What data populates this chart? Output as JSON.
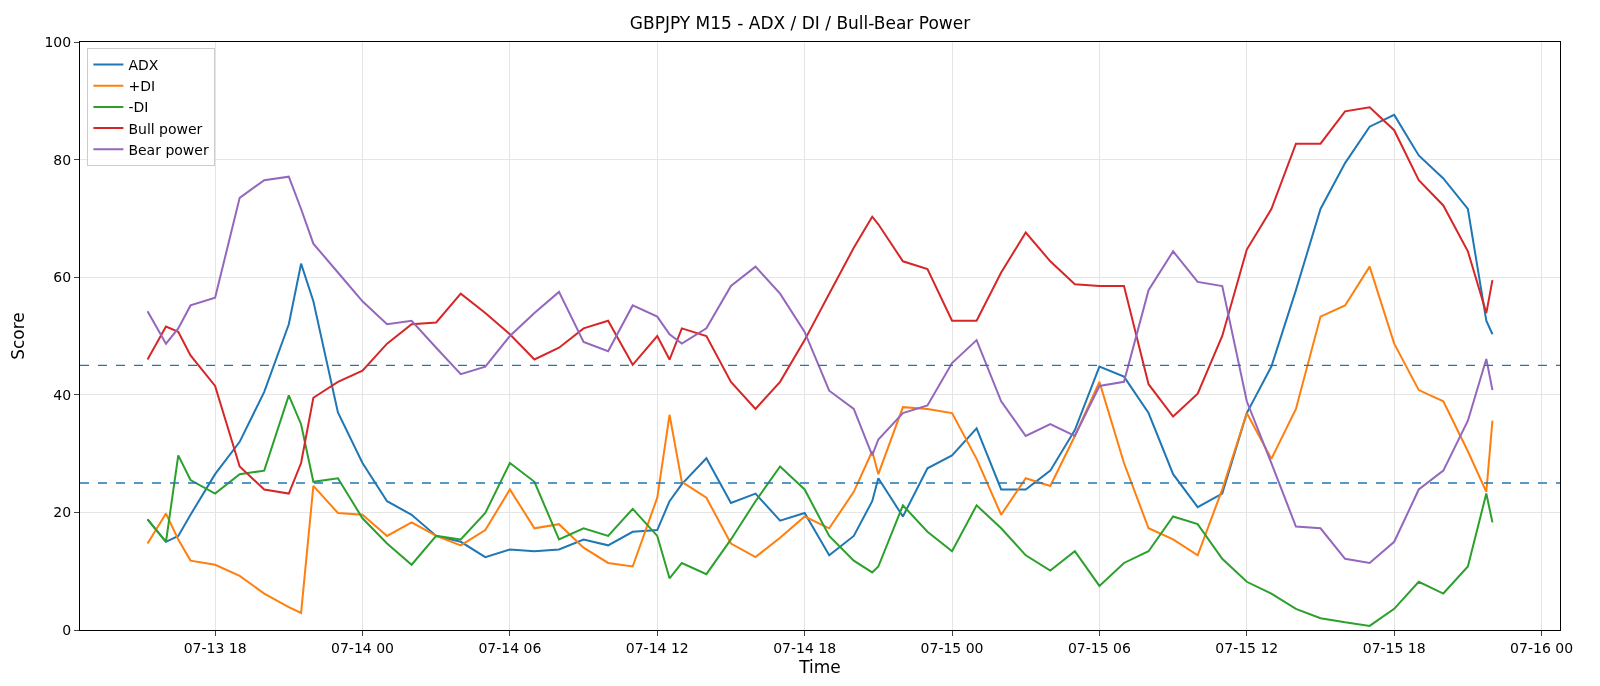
{
  "chart_data": {
    "type": "line",
    "title": "GBPJPY M15 - ADX / DI / Bull-Bear Power",
    "xlabel": "Time",
    "ylabel": "Score",
    "x": [
      "--07-13T15:15",
      "--07-13T16:00",
      "--07-13T16:30",
      "--07-13T17:00",
      "--07-13T18:00",
      "--07-13T19:00",
      "--07-13T20:00",
      "--07-13T21:00",
      "--07-13T21:30",
      "--07-13T22:00",
      "--07-13T23:00",
      "--07-14T00:00",
      "--07-14T01:00",
      "--07-14T02:00",
      "--07-14T03:00",
      "--07-14T04:00",
      "--07-14T05:00",
      "--07-14T06:00",
      "--07-14T07:00",
      "--07-14T08:00",
      "--07-14T09:00",
      "--07-14T10:00",
      "--07-14T11:00",
      "--07-14T12:00",
      "--07-14T12:30",
      "--07-14T13:00",
      "--07-14T14:00",
      "--07-14T15:00",
      "--07-14T16:00",
      "--07-14T17:00",
      "--07-14T18:00",
      "--07-14T19:00",
      "--07-14T20:00",
      "--07-14T20:45",
      "--07-14T21:00",
      "--07-14T22:00",
      "--07-14T23:00",
      "--07-15T00:00",
      "--07-15T01:00",
      "--07-15T02:00",
      "--07-15T03:00",
      "--07-15T04:00",
      "--07-15T05:00",
      "--07-15T06:00",
      "--07-15T07:00",
      "--07-15T08:00",
      "--07-15T09:00",
      "--07-15T10:00",
      "--07-15T11:00",
      "--07-15T12:00",
      "--07-15T13:00",
      "--07-15T14:00",
      "--07-15T15:00",
      "--07-15T16:00",
      "--07-15T17:00",
      "--07-15T18:00",
      "--07-15T19:00",
      "--07-15T20:00",
      "--07-15T21:00",
      "--07-15T21:45",
      "--07-15T22:00"
    ],
    "series": [
      {
        "name": "ADX",
        "color": "#1f77b4",
        "values": [
          18.8,
          15,
          16,
          19.6,
          26.5,
          32,
          40.5,
          52,
          62.3,
          55.9,
          37,
          28.4,
          21.9,
          19.6,
          16,
          15,
          12.4,
          13.7,
          13.4,
          13.7,
          15.4,
          14.4,
          16.7,
          17,
          21.9,
          24.8,
          29.2,
          21.6,
          23.2,
          18.6,
          19.9,
          12.7,
          16,
          21.9,
          25.8,
          19.3,
          27.5,
          29.7,
          34.3,
          23.9,
          23.9,
          27.1,
          34,
          44.8,
          43.1,
          36.9,
          26.5,
          20.9,
          23.2,
          36.9,
          44.8,
          57.8,
          71.6,
          79.4,
          85.6,
          87.6,
          80.7,
          76.8,
          71.6,
          52.6,
          50.3
        ]
      },
      {
        "name": "+DI",
        "color": "#ff7f0e",
        "values": [
          14.7,
          19.8,
          15.4,
          11.8,
          11.1,
          9.2,
          6.2,
          3.9,
          2.9,
          24.5,
          19.9,
          19.6,
          16,
          18.3,
          16,
          14.4,
          17,
          23.9,
          17.3,
          18,
          14,
          11.4,
          10.8,
          22.5,
          36.6,
          25.2,
          22.5,
          14.7,
          12.4,
          15.7,
          19.3,
          17.3,
          23.5,
          30.4,
          26.5,
          37.9,
          37.6,
          36.9,
          29.1,
          19.6,
          25.8,
          24.5,
          33,
          42.2,
          28.4,
          17.3,
          15.4,
          12.7,
          23.9,
          36.9,
          29.1,
          37.6,
          53.3,
          55.2,
          61.8,
          48.7,
          40.8,
          38.9,
          30.4,
          23.5,
          35.6
        ]
      },
      {
        "name": "-DI",
        "color": "#2ca02c",
        "values": [
          18.8,
          15,
          29.7,
          25.5,
          23.2,
          26.5,
          27.1,
          39.9,
          35,
          25.2,
          25.8,
          19,
          14.7,
          11.1,
          16,
          15.4,
          19.9,
          28.4,
          25.2,
          15.4,
          17.3,
          16,
          20.6,
          16,
          8.8,
          11.4,
          9.5,
          15.4,
          21.9,
          27.8,
          23.9,
          16,
          11.8,
          9.8,
          10.8,
          21.2,
          16.7,
          13.4,
          21.2,
          17.3,
          12.7,
          10.1,
          13.4,
          7.5,
          11.4,
          13.4,
          19.3,
          18,
          12.1,
          8.2,
          6.2,
          3.6,
          2,
          1.3,
          0.7,
          3.6,
          8.2,
          6.2,
          10.8,
          23.2,
          18.3
        ]
      },
      {
        "name": "Bull power",
        "color": "#d62728",
        "values": [
          46,
          51.6,
          50.7,
          46.7,
          41.5,
          27.8,
          23.9,
          23.2,
          28.4,
          39.5,
          42.2,
          44.1,
          48.7,
          52,
          52.3,
          57.2,
          53.9,
          50.3,
          46,
          48,
          51.3,
          52.6,
          45.1,
          50,
          46,
          51.3,
          50,
          42.2,
          37.6,
          42.2,
          49.3,
          57.2,
          65,
          70.3,
          69,
          62.7,
          61.4,
          52.6,
          52.6,
          60.8,
          67.6,
          62.7,
          58.8,
          58.5,
          58.5,
          41.8,
          36.3,
          40.2,
          50,
          64.7,
          71.6,
          82.7,
          82.7,
          88.2,
          88.9,
          85,
          76.5,
          72.2,
          64.4,
          53.9,
          59.5
        ]
      },
      {
        "name": "Bear power",
        "color": "#9467bd",
        "values": [
          54.2,
          48.7,
          51.3,
          55.2,
          56.5,
          73.5,
          76.5,
          77.1,
          71.6,
          65.7,
          60.8,
          55.9,
          52,
          52.6,
          48,
          43.5,
          44.8,
          50,
          53.9,
          57.5,
          49,
          47.4,
          55.2,
          53.3,
          50.3,
          48.7,
          51.3,
          58.5,
          61.8,
          57.2,
          50.7,
          40.7,
          37.6,
          29.7,
          32.4,
          36.9,
          38.2,
          45.4,
          49.3,
          38.9,
          33,
          35,
          33,
          41.5,
          42.2,
          57.8,
          64.4,
          59.2,
          58.5,
          38.9,
          28.4,
          17.6,
          17.3,
          12.1,
          11.4,
          15,
          23.9,
          27.1,
          35.6,
          46.1,
          40.8
        ]
      }
    ],
    "ref_lines": [
      {
        "axis": "y",
        "value": 45,
        "color": "#1f77b4",
        "line_style": "dashed"
      },
      {
        "axis": "y",
        "value": 25,
        "color": "#1f77b4",
        "line_style": "dashed"
      }
    ],
    "xlim": [
      "--07-13T12:30",
      "--07-16T00:45"
    ],
    "xticks": [
      {
        "value": "--07-13T18:00",
        "label": "07-13 18"
      },
      {
        "value": "--07-14T00:00",
        "label": "07-14 00"
      },
      {
        "value": "--07-14T06:00",
        "label": "07-14 06"
      },
      {
        "value": "--07-14T12:00",
        "label": "07-14 12"
      },
      {
        "value": "--07-14T18:00",
        "label": "07-14 18"
      },
      {
        "value": "--07-15T00:00",
        "label": "07-15 00"
      },
      {
        "value": "--07-15T06:00",
        "label": "07-15 06"
      },
      {
        "value": "--07-15T12:00",
        "label": "07-15 12"
      },
      {
        "value": "--07-15T18:00",
        "label": "07-15 18"
      },
      {
        "value": "--07-16T00:00",
        "label": "07-16 00"
      }
    ],
    "ylim": [
      0,
      100
    ],
    "yticks": [
      0,
      20,
      40,
      60,
      80,
      100
    ],
    "grid": true,
    "legend": "top left",
    "marker": "none",
    "line_style": "solid"
  }
}
